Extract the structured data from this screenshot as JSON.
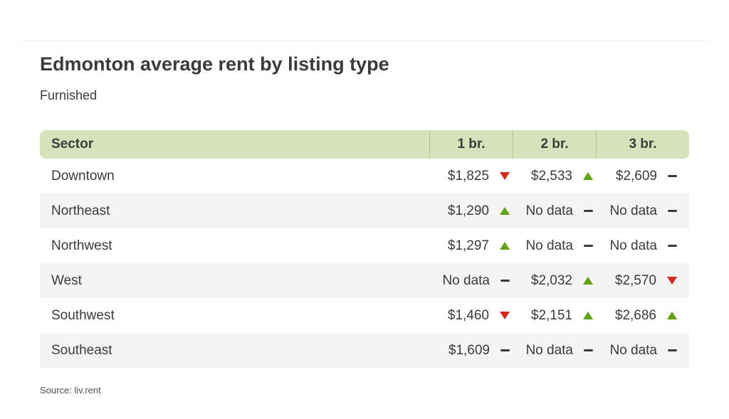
{
  "page": {
    "source": "Source: liv.rent"
  },
  "chart_data": {
    "type": "table",
    "title": "Edmonton average rent by listing type",
    "subtitle": "Furnished",
    "columns": [
      "Sector",
      "1 br.",
      "2 br.",
      "3 br."
    ],
    "rows": [
      {
        "sector": "Downtown",
        "values": [
          {
            "text": "$1,825",
            "trend": "down"
          },
          {
            "text": "$2,533",
            "trend": "up"
          },
          {
            "text": "$2,609",
            "trend": "flat"
          }
        ]
      },
      {
        "sector": "Northeast",
        "values": [
          {
            "text": "$1,290",
            "trend": "up"
          },
          {
            "text": "No data",
            "trend": "flat"
          },
          {
            "text": "No data",
            "trend": "flat"
          }
        ]
      },
      {
        "sector": "Northwest",
        "values": [
          {
            "text": "$1,297",
            "trend": "up"
          },
          {
            "text": "No data",
            "trend": "flat"
          },
          {
            "text": "No data",
            "trend": "flat"
          }
        ]
      },
      {
        "sector": "West",
        "values": [
          {
            "text": "No data",
            "trend": "flat"
          },
          {
            "text": "$2,032",
            "trend": "up"
          },
          {
            "text": "$2,570",
            "trend": "down"
          }
        ]
      },
      {
        "sector": "Southwest",
        "values": [
          {
            "text": "$1,460",
            "trend": "down"
          },
          {
            "text": "$2,151",
            "trend": "up"
          },
          {
            "text": "$2,686",
            "trend": "up"
          }
        ]
      },
      {
        "sector": "Southeast",
        "values": [
          {
            "text": "$1,609",
            "trend": "flat"
          },
          {
            "text": "No data",
            "trend": "flat"
          },
          {
            "text": "No data",
            "trend": "flat"
          }
        ]
      }
    ]
  },
  "colors": {
    "header_bg": "#d6e3ba",
    "stripe_bg": "#f4f4f4",
    "up": "#5fa30e",
    "down": "#d9261c",
    "flat": "#3a3a3a",
    "text": "#3b3b3b"
  }
}
